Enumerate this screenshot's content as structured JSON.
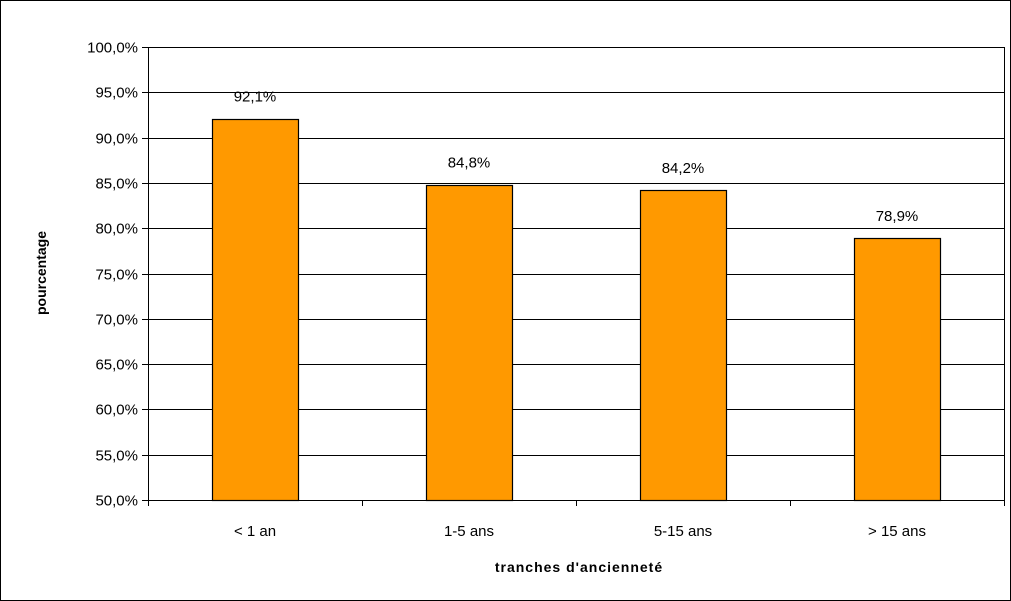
{
  "chart_data": {
    "type": "bar",
    "title": "",
    "xlabel": "tranches d'ancienneté",
    "ylabel": "pourcentage",
    "categories": [
      "< 1 an",
      "1-5 ans",
      "5-15 ans",
      "> 15 ans"
    ],
    "values": [
      92.1,
      84.8,
      84.2,
      78.9
    ],
    "data_labels": [
      "92,1%",
      "84,8%",
      "84,2%",
      "78,9%"
    ],
    "ylim": [
      50,
      100
    ],
    "y_ticks": [
      50,
      55,
      60,
      65,
      70,
      75,
      80,
      85,
      90,
      95,
      100
    ],
    "y_tick_labels": [
      "50,0%",
      "55,0%",
      "60,0%",
      "65,0%",
      "70,0%",
      "75,0%",
      "80,0%",
      "85,0%",
      "90,0%",
      "95,0%",
      "100,0%"
    ],
    "grid": true,
    "legend": "none",
    "colors": {
      "bar_fill": "#FF9900",
      "bar_stroke": "#000000",
      "gridline": "#000000",
      "axis": "#000000"
    }
  }
}
